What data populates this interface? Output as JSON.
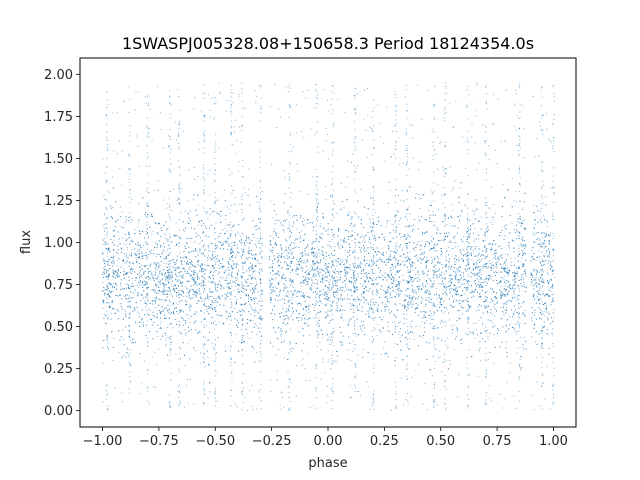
{
  "chart_data": {
    "type": "scatter",
    "title": "1SWASPJ005328.08+150658.3 Period 18124354.0s",
    "xlabel": "phase",
    "ylabel": "flux",
    "xlim": [
      -1.1,
      1.1
    ],
    "ylim": [
      -0.097,
      2.097
    ],
    "xticks": [
      -1.0,
      -0.75,
      -0.5,
      -0.25,
      0.0,
      0.25,
      0.5,
      0.75,
      1.0
    ],
    "xtick_labels": [
      "−1.00",
      "−0.75",
      "−0.50",
      "−0.25",
      "0.00",
      "0.25",
      "0.50",
      "0.75",
      "1.00"
    ],
    "yticks": [
      0.0,
      0.25,
      0.5,
      0.75,
      1.0,
      1.25,
      1.5,
      1.75,
      2.0
    ],
    "ytick_labels": [
      "0.00",
      "0.25",
      "0.50",
      "0.75",
      "1.00",
      "1.25",
      "1.50",
      "1.75",
      "2.00"
    ],
    "grid": false,
    "legend": "none",
    "marker_color": "#1f77b4",
    "data_summary": {
      "x_range": [
        -1.0,
        1.0
      ],
      "y_range": [
        0.0,
        1.95
      ],
      "typical_flux_center": 0.8,
      "typical_flux_band": [
        0.45,
        1.2
      ],
      "data_gaps_x": [
        [
          -0.29,
          -0.26
        ],
        [
          0.88,
          0.9
        ]
      ],
      "column_streak_phases": [
        -0.98,
        -0.88,
        -0.8,
        -0.7,
        -0.66,
        -0.55,
        -0.5,
        -0.43,
        -0.38,
        -0.3,
        -0.17,
        -0.05,
        0.02,
        0.12,
        0.2,
        0.3,
        0.35,
        0.47,
        0.52,
        0.62,
        0.7,
        0.85,
        0.95,
        1.0
      ]
    }
  }
}
